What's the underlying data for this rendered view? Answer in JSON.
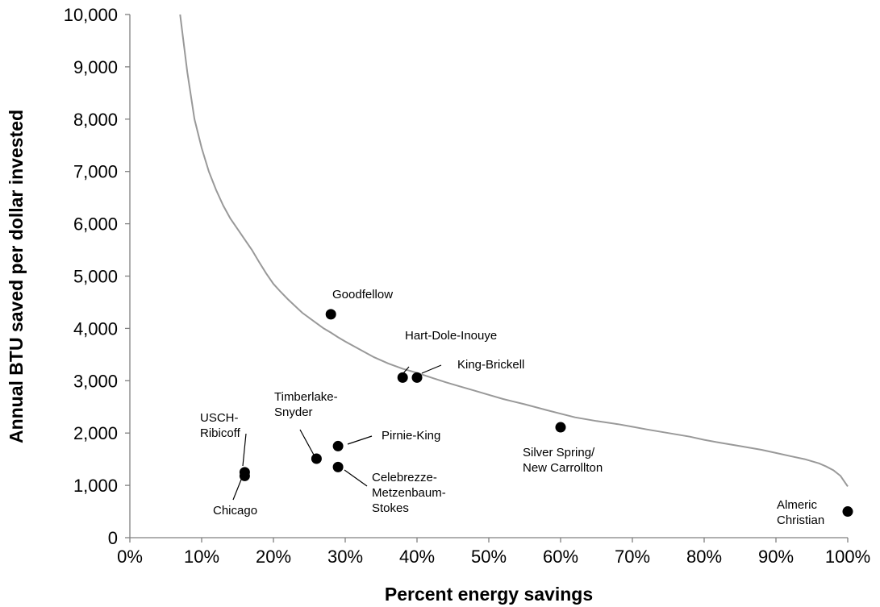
{
  "chart_data": {
    "type": "scatter",
    "title": "",
    "xlabel": "Percent energy savings",
    "ylabel": "Annual BTU saved per dollar invested",
    "xlim": [
      0,
      100
    ],
    "ylim": [
      0,
      10000
    ],
    "x_ticks": [
      "0%",
      "10%",
      "20%",
      "30%",
      "40%",
      "50%",
      "60%",
      "70%",
      "80%",
      "90%",
      "100%"
    ],
    "y_ticks": [
      "0",
      "1,000",
      "2,000",
      "3,000",
      "4,000",
      "5,000",
      "6,000",
      "7,000",
      "8,000",
      "9,000",
      "10,000"
    ],
    "grid": false,
    "points": [
      {
        "name": "Goodfellow",
        "label": [
          "Goodfellow"
        ],
        "x": 28,
        "y": 4270
      },
      {
        "name": "Hart-Dole-Inouye",
        "label": [
          "Hart-Dole-Inouye"
        ],
        "x": 38,
        "y": 3060
      },
      {
        "name": "King-Brickell",
        "label": [
          "King-Brickell"
        ],
        "x": 40,
        "y": 3060
      },
      {
        "name": "Silver Spring/ New Carrollton",
        "label": [
          "Silver Spring/",
          "New Carrollton"
        ],
        "x": 60,
        "y": 2110
      },
      {
        "name": "Timberlake-Snyder",
        "label": [
          "Timberlake-",
          "Snyder"
        ],
        "x": 26,
        "y": 1510
      },
      {
        "name": "Pirnie-King",
        "label": [
          "Pirnie-King"
        ],
        "x": 29,
        "y": 1750
      },
      {
        "name": "Celebrezze-Metzenbaum-Stokes",
        "label": [
          "Celebrezze-",
          "Metzenbaum-",
          "Stokes"
        ],
        "x": 29,
        "y": 1350
      },
      {
        "name": "USCH-Ribicoff",
        "label": [
          "USCH-",
          "Ribicoff"
        ],
        "x": 16,
        "y": 1250
      },
      {
        "name": "Chicago",
        "label": [
          "Chicago"
        ],
        "x": 16,
        "y": 1180
      },
      {
        "name": "Almeric Christian",
        "label": [
          "Almeric",
          "Christian"
        ],
        "x": 100,
        "y": 500
      }
    ],
    "curve": {
      "type": "line",
      "color": "#999999",
      "x": [
        7,
        8,
        9,
        10,
        11,
        12,
        13,
        14,
        15,
        16,
        17,
        18,
        19,
        20,
        21,
        22,
        23,
        24,
        25,
        26,
        27,
        28,
        29,
        30,
        32,
        34,
        36,
        38,
        40,
        42,
        44,
        46,
        48,
        50,
        52,
        55,
        58,
        60,
        62,
        65,
        68,
        70,
        72,
        75,
        78,
        80,
        82,
        85,
        88,
        90,
        92,
        94,
        96,
        97,
        98,
        99,
        99.5,
        100
      ],
      "y": [
        10000,
        8900,
        8000,
        7450,
        7000,
        6650,
        6350,
        6100,
        5900,
        5700,
        5500,
        5270,
        5050,
        4850,
        4700,
        4560,
        4430,
        4300,
        4200,
        4100,
        4000,
        3920,
        3830,
        3750,
        3600,
        3450,
        3330,
        3230,
        3150,
        3060,
        2970,
        2890,
        2810,
        2730,
        2650,
        2550,
        2440,
        2370,
        2300,
        2230,
        2170,
        2120,
        2070,
        2000,
        1930,
        1870,
        1820,
        1750,
        1680,
        1620,
        1560,
        1500,
        1420,
        1360,
        1290,
        1180,
        1080,
        980
      ]
    }
  }
}
